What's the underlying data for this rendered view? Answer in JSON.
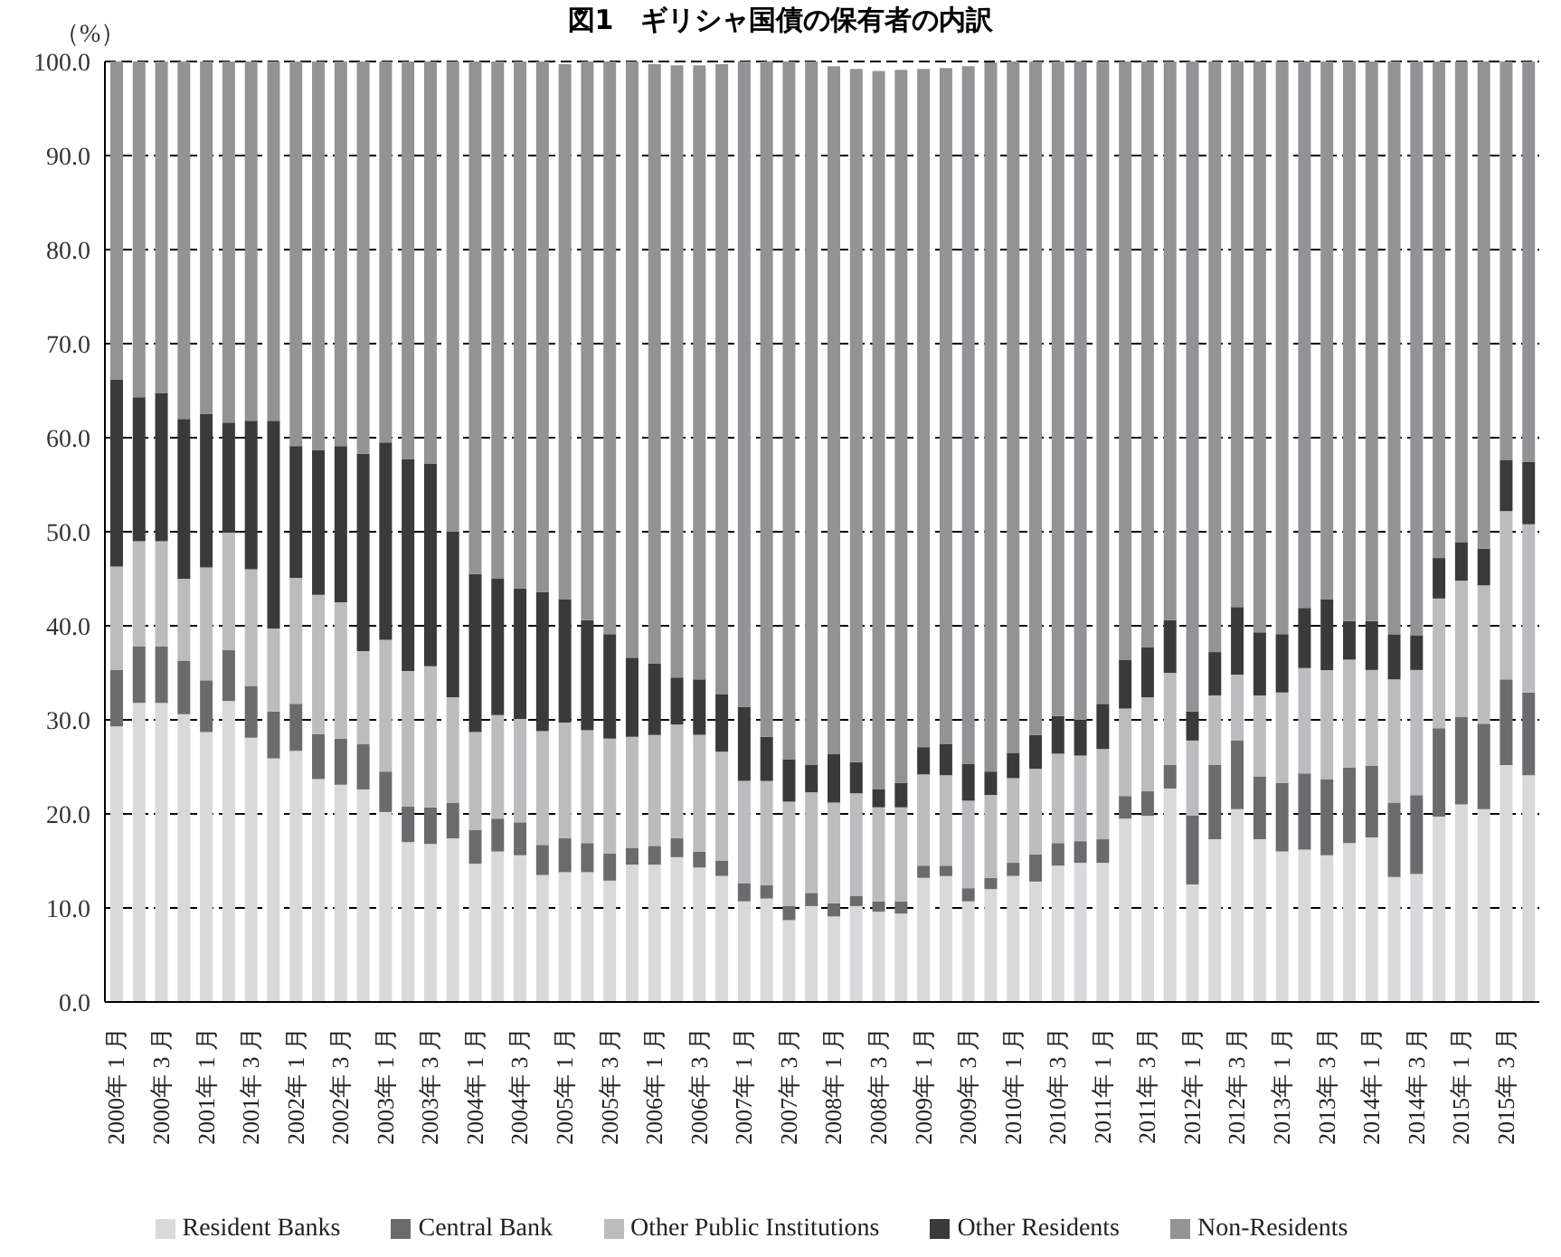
{
  "chart_data": {
    "type": "bar",
    "stacked": true,
    "title": "図1　ギリシャ国債の保有者の内訳",
    "ylabel": "（%）",
    "categories": [
      "2000年 1 月",
      null,
      "2000年 3 月",
      null,
      "2001年 1 月",
      null,
      "2001年 3 月",
      null,
      "2002年 1 月",
      null,
      "2002年 3 月",
      null,
      "2003年 1 月",
      null,
      "2003年 3 月",
      null,
      "2004年 1 月",
      null,
      "2004年 3 月",
      null,
      "2005年 1 月",
      null,
      "2005年 3 月",
      null,
      "2006年 1 月",
      null,
      "2006年 3 月",
      null,
      "2007年 1 月",
      null,
      "2007年 3 月",
      null,
      "2008年 1 月",
      null,
      "2008年 3 月",
      null,
      "2009年 1 月",
      null,
      "2009年 3 月",
      null,
      "2010年 1 月",
      null,
      "2010年 3 月",
      null,
      "2011年 1 月",
      null,
      "2011年 3 月",
      null,
      "2012年 1 月",
      null,
      "2012年 3 月",
      null,
      "2013年 1 月",
      null,
      "2013年 3 月",
      null,
      "2014年 1 月",
      null,
      "2014年 3 月",
      null,
      "2015年 1 月",
      null,
      "2015年 3 月",
      null
    ],
    "series": [
      {
        "name": "Resident Banks",
        "color": "#d9d9db",
        "values": [
          29.3,
          31.8,
          31.8,
          30.6,
          28.7,
          32.0,
          28.1,
          25.9,
          26.7,
          23.7,
          23.1,
          22.6,
          20.2,
          17.0,
          16.8,
          17.4,
          14.7,
          16.0,
          15.6,
          13.5,
          13.8,
          13.8,
          12.9,
          14.6,
          14.6,
          15.4,
          14.3,
          13.4,
          10.7,
          11.0,
          8.7,
          10.2,
          9.1,
          10.2,
          9.6,
          9.4,
          13.2,
          13.4,
          10.7,
          12.0,
          13.4,
          12.8,
          14.5,
          14.8,
          14.8,
          19.5,
          19.8,
          22.7,
          12.5,
          17.3,
          20.5,
          17.3,
          16.0,
          16.2,
          15.6,
          16.9,
          17.5,
          13.3,
          13.6,
          19.7,
          21.0,
          20.5,
          25.2,
          24.1
        ]
      },
      {
        "name": "Central Bank",
        "color": "#6b6b6e",
        "values": [
          6.0,
          6.0,
          6.0,
          5.7,
          5.5,
          5.4,
          5.5,
          5.0,
          5.0,
          4.8,
          4.9,
          4.8,
          4.3,
          3.8,
          3.9,
          3.8,
          3.6,
          3.5,
          3.5,
          3.2,
          3.6,
          3.1,
          2.9,
          1.8,
          2.0,
          2.0,
          1.7,
          1.6,
          1.9,
          1.4,
          1.5,
          1.4,
          1.4,
          1.1,
          1.1,
          1.3,
          1.3,
          1.1,
          1.4,
          1.2,
          1.4,
          2.9,
          2.4,
          2.3,
          2.5,
          2.4,
          2.6,
          2.5,
          7.3,
          7.9,
          7.3,
          6.7,
          7.3,
          8.1,
          8.1,
          8.0,
          7.6,
          7.9,
          8.4,
          9.4,
          9.3,
          9.1,
          9.1,
          8.8
        ]
      },
      {
        "name": "Other Public Institutions",
        "color": "#bcbcbf",
        "values": [
          11.0,
          11.2,
          11.2,
          8.7,
          12.0,
          12.5,
          12.4,
          8.8,
          13.4,
          14.8,
          14.5,
          9.9,
          14.0,
          14.4,
          15.0,
          11.2,
          10.4,
          11.0,
          11.0,
          12.1,
          12.3,
          12.0,
          12.2,
          11.8,
          11.8,
          12.1,
          12.4,
          11.6,
          10.9,
          11.1,
          11.1,
          10.7,
          10.7,
          10.9,
          10.0,
          10.0,
          9.7,
          9.6,
          9.3,
          8.8,
          9.0,
          9.1,
          9.5,
          9.1,
          9.6,
          9.3,
          10.0,
          9.8,
          8.0,
          7.4,
          7.0,
          8.6,
          9.6,
          11.2,
          11.6,
          11.5,
          10.2,
          13.1,
          13.3,
          13.8,
          14.5,
          14.7,
          17.9,
          17.9
        ]
      },
      {
        "name": "Other Residents",
        "color": "#3a3a3a",
        "values": [
          19.9,
          15.3,
          15.7,
          17.0,
          16.3,
          11.7,
          15.8,
          22.1,
          14.0,
          15.4,
          16.6,
          21.0,
          21.0,
          22.5,
          21.5,
          17.6,
          16.8,
          14.5,
          13.9,
          14.8,
          13.1,
          11.7,
          11.1,
          8.4,
          7.6,
          5.0,
          5.9,
          6.1,
          7.9,
          4.7,
          4.5,
          2.9,
          5.2,
          3.3,
          1.9,
          2.6,
          2.9,
          3.3,
          3.9,
          2.5,
          2.7,
          3.6,
          4.0,
          3.8,
          4.8,
          5.2,
          5.3,
          5.6,
          3.1,
          4.6,
          7.2,
          6.7,
          6.2,
          6.4,
          7.5,
          4.1,
          5.2,
          4.8,
          3.7,
          4.3,
          4.1,
          3.9,
          5.4,
          6.6
        ]
      },
      {
        "name": "Non-Residents",
        "color": "#939396",
        "values": [
          33.8,
          35.7,
          35.3,
          38.0,
          37.5,
          38.4,
          38.2,
          38.2,
          40.9,
          41.3,
          40.9,
          41.7,
          40.5,
          42.3,
          42.8,
          50.0,
          54.5,
          55.0,
          56.0,
          56.4,
          56.9,
          59.4,
          60.9,
          63.4,
          63.7,
          65.1,
          65.3,
          67.0,
          68.6,
          71.8,
          74.2,
          74.8,
          73.1,
          73.7,
          76.4,
          75.8,
          72.1,
          71.9,
          74.2,
          75.4,
          73.5,
          71.6,
          69.6,
          70.0,
          68.3,
          63.6,
          62.3,
          59.4,
          69.1,
          62.8,
          58.0,
          60.7,
          60.9,
          58.1,
          57.2,
          59.5,
          59.5,
          60.9,
          61.0,
          52.8,
          51.1,
          51.8,
          42.4,
          42.6
        ]
      }
    ],
    "ylim": [
      0,
      100
    ],
    "yticks": [
      {
        "value": 0,
        "label": "0.0"
      },
      {
        "value": 10,
        "label": "10.0"
      },
      {
        "value": 20,
        "label": "20.0"
      },
      {
        "value": 30,
        "label": "30.0"
      },
      {
        "value": 40,
        "label": "40.0"
      },
      {
        "value": 50,
        "label": "50.0"
      },
      {
        "value": 60,
        "label": "60.0"
      },
      {
        "value": 70,
        "label": "70.0"
      },
      {
        "value": 80,
        "label": "80.0"
      },
      {
        "value": 90,
        "label": "90.0"
      },
      {
        "value": 100,
        "label": "100.0"
      }
    ],
    "grid": "y",
    "legend": "bottom"
  }
}
